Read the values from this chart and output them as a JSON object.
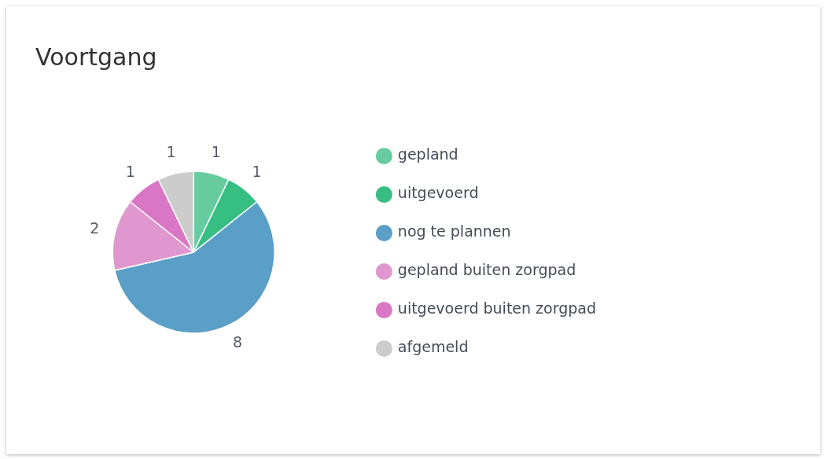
{
  "chart_data": {
    "type": "pie",
    "title": "Voortgang",
    "categories": [
      "gepland",
      "uitgevoerd",
      "nog te plannen",
      "gepland buiten zorgpad",
      "uitgevoerd buiten zorgpad",
      "afgemeld"
    ],
    "values": [
      1,
      1,
      8,
      2,
      1,
      1
    ],
    "colors": [
      "#66cc9f",
      "#36be83",
      "#5a9fc7",
      "#e097cf",
      "#da77c5",
      "#cccccc"
    ],
    "data_labels": true,
    "legend": "right"
  }
}
